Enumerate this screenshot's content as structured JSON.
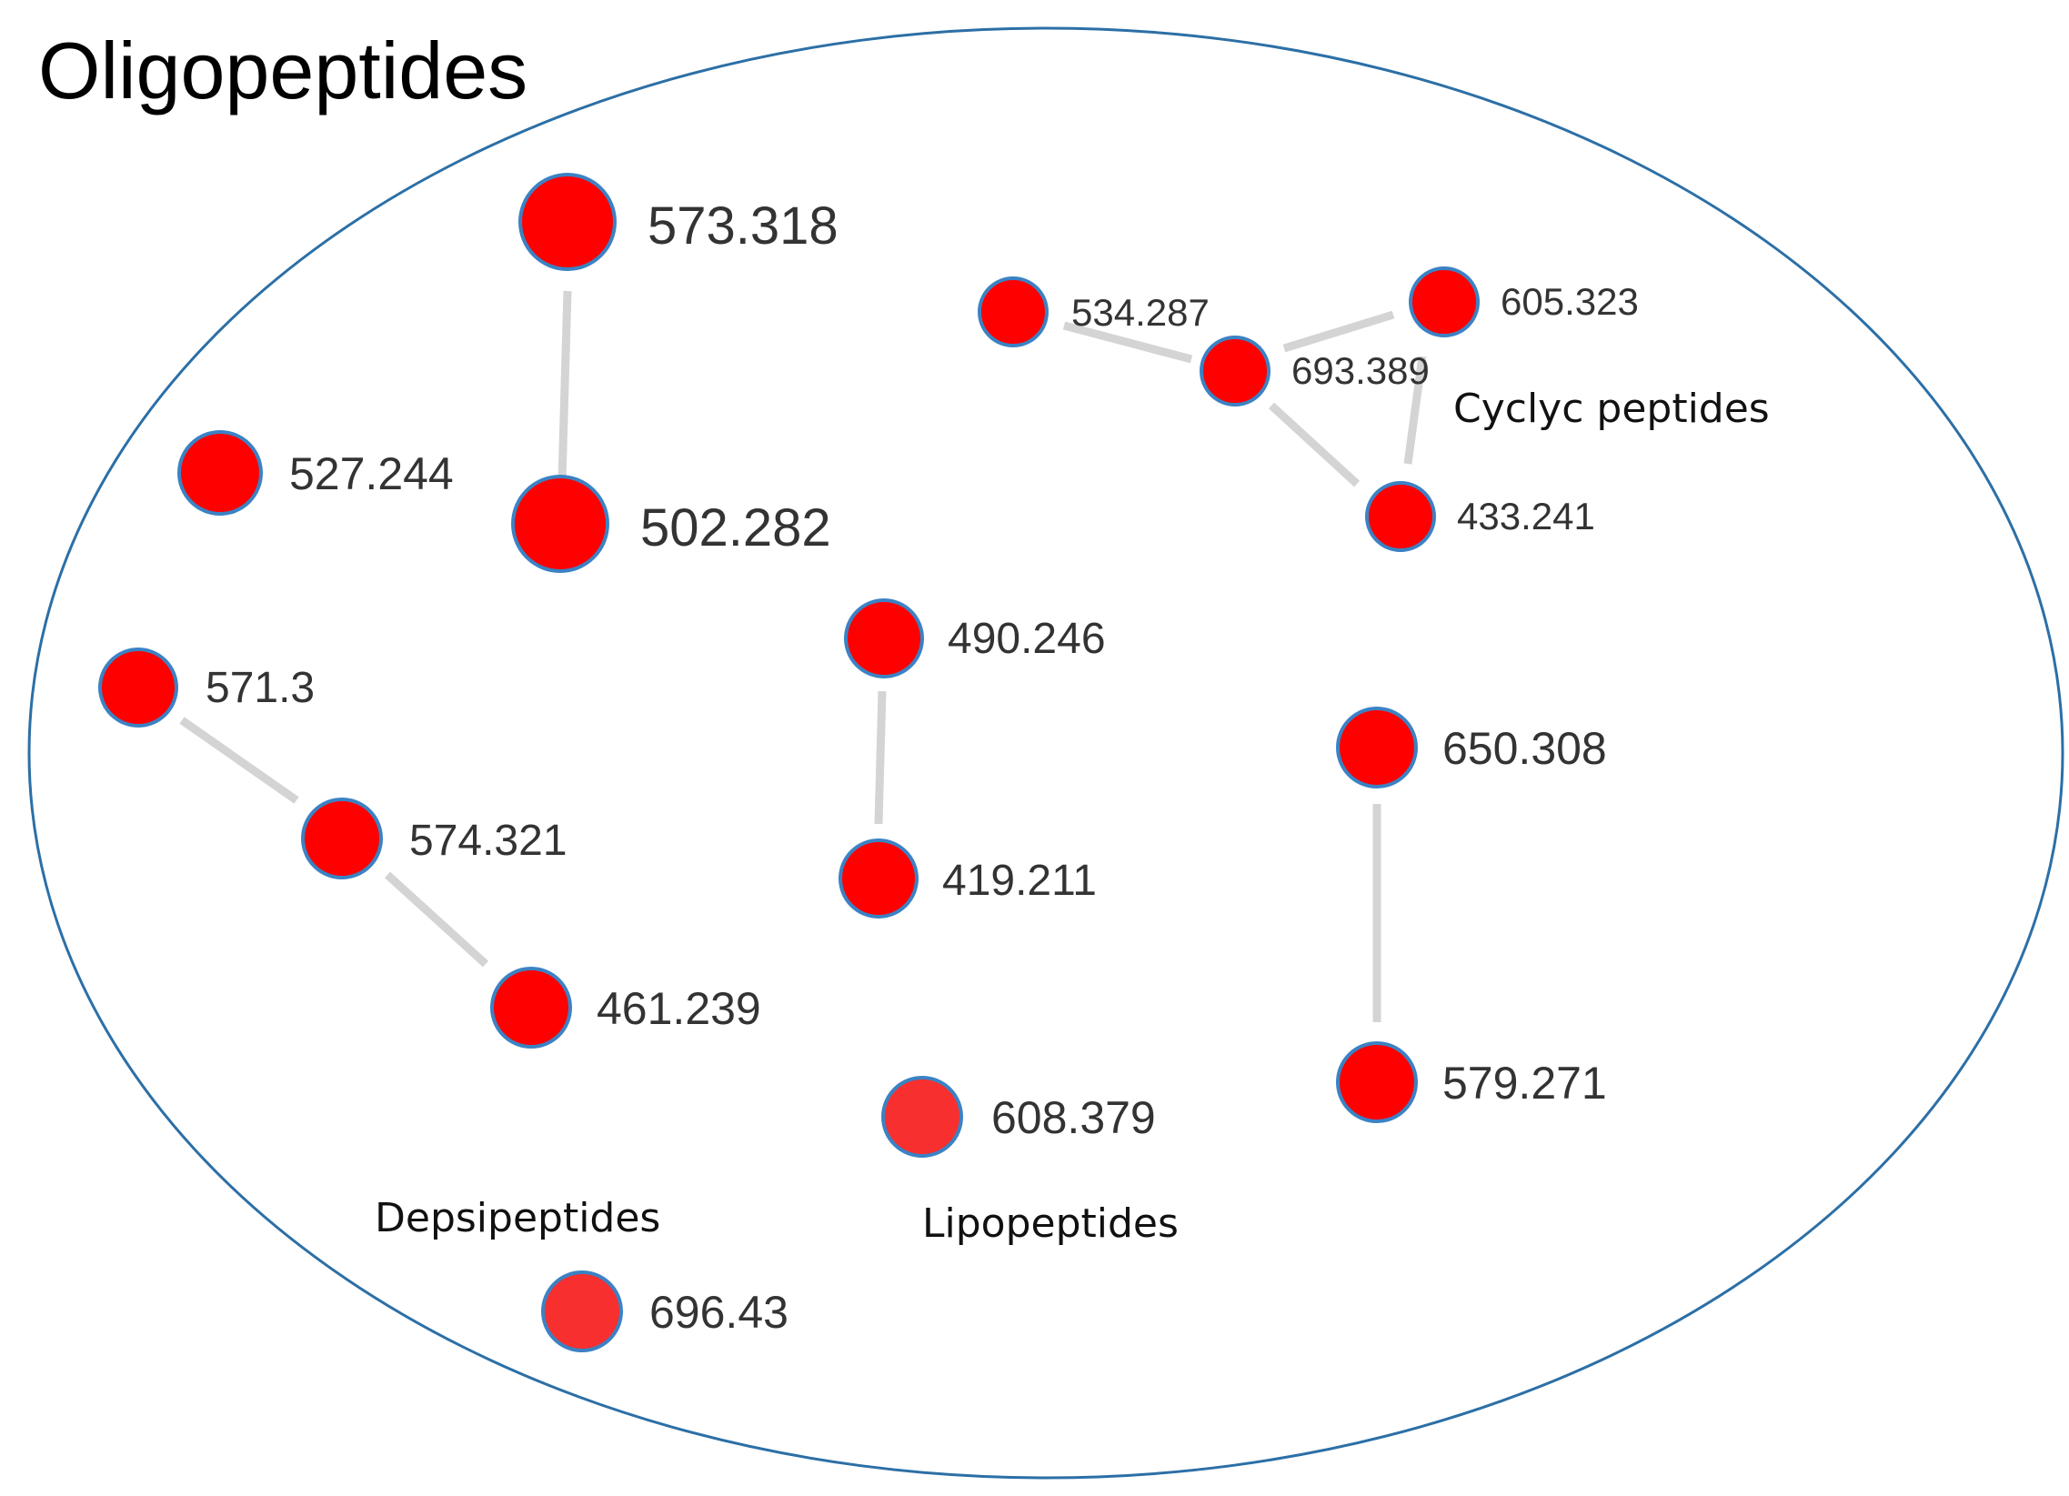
{
  "title": "Oligopeptides",
  "colors": {
    "node_fill": "#ff0000",
    "node_fill_light": "#f72f2f",
    "node_stroke": "#3b82c4",
    "edge": "#d4d4d4",
    "boundary": "#2c6fa6",
    "text": "#333333"
  },
  "groups": {
    "cyclic": "Cyclyc peptides",
    "depsi": "Depsipeptides",
    "lipo": "Lipopeptides"
  },
  "nodes": [
    {
      "id": "n573_318",
      "label": "573.318"
    },
    {
      "id": "n502_282",
      "label": "502.282"
    },
    {
      "id": "n527_244",
      "label": "527.244"
    },
    {
      "id": "n534_287",
      "label": "534.287"
    },
    {
      "id": "n693_389",
      "label": "693.389"
    },
    {
      "id": "n605_323",
      "label": "605.323"
    },
    {
      "id": "n433_241",
      "label": "433.241"
    },
    {
      "id": "n490_246",
      "label": "490.246"
    },
    {
      "id": "n419_211",
      "label": "419.211"
    },
    {
      "id": "n571_3",
      "label": "571.3"
    },
    {
      "id": "n574_321",
      "label": "574.321"
    },
    {
      "id": "n461_239",
      "label": "461.239"
    },
    {
      "id": "n650_308",
      "label": "650.308"
    },
    {
      "id": "n579_271",
      "label": "579.271"
    },
    {
      "id": "n608_379",
      "label": "608.379"
    },
    {
      "id": "n696_43",
      "label": "696.43"
    }
  ],
  "edges": [
    {
      "source": "n573_318",
      "target": "n502_282"
    },
    {
      "source": "n534_287",
      "target": "n693_389"
    },
    {
      "source": "n693_389",
      "target": "n605_323"
    },
    {
      "source": "n693_389",
      "target": "n433_241"
    },
    {
      "source": "n605_323",
      "target": "n433_241"
    },
    {
      "source": "n490_246",
      "target": "n419_211"
    },
    {
      "source": "n571_3",
      "target": "n574_321"
    },
    {
      "source": "n574_321",
      "target": "n461_239"
    },
    {
      "source": "n650_308",
      "target": "n579_271"
    }
  ]
}
